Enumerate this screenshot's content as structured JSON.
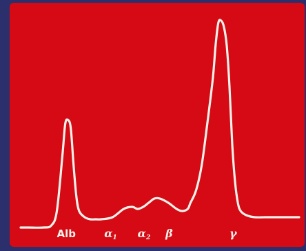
{
  "chart_data": {
    "type": "line",
    "title": "",
    "xlabel": "",
    "ylabel": "",
    "xlim": [
      0,
      100
    ],
    "ylim": [
      0,
      100
    ],
    "grid": false,
    "background_color": "#d50a14",
    "frame_color": "#2b2f6b",
    "line_color": "#f4f1ea",
    "x": [
      0,
      3,
      8,
      11,
      13,
      15,
      16,
      17,
      18,
      19,
      20,
      21,
      23,
      25,
      27,
      29,
      33,
      37,
      40,
      42,
      44,
      46,
      48,
      50,
      53,
      56,
      58,
      60,
      61,
      63,
      65,
      67,
      69,
      70,
      71,
      72,
      73,
      74,
      75,
      76,
      77,
      78,
      79,
      81,
      84,
      88,
      92,
      96,
      100
    ],
    "y": [
      0,
      0,
      0,
      1,
      8,
      35,
      50,
      52,
      48,
      30,
      15,
      8,
      5,
      4,
      4,
      4,
      5,
      9,
      10,
      9,
      10,
      12,
      14,
      14,
      12,
      9,
      8,
      9,
      12,
      18,
      30,
      50,
      72,
      88,
      99,
      100,
      97,
      88,
      68,
      40,
      22,
      12,
      8,
      6,
      5,
      5,
      5,
      5,
      5
    ],
    "fraction_labels": [
      {
        "text": "Alb",
        "sub": "",
        "x": 13,
        "greek": false
      },
      {
        "text": "α",
        "sub": "1",
        "x": 30,
        "greek": true
      },
      {
        "text": "α",
        "sub": "2",
        "x": 42,
        "greek": true
      },
      {
        "text": "β",
        "sub": "",
        "x": 52,
        "greek": true
      },
      {
        "text": "γ",
        "sub": "",
        "x": 75,
        "greek": true
      }
    ]
  }
}
